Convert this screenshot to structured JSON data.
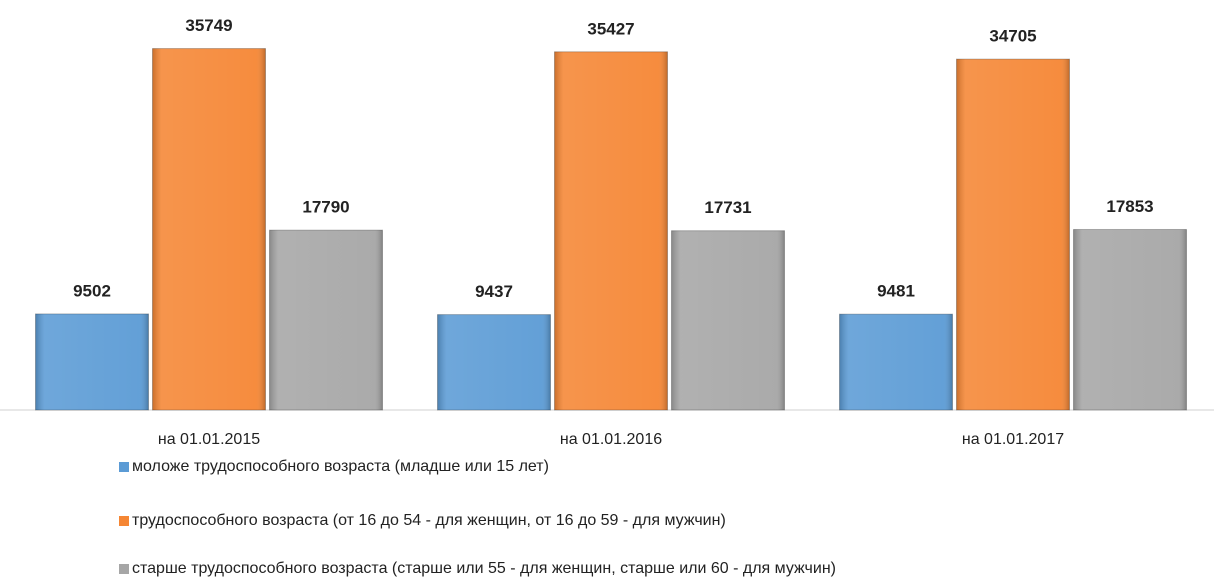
{
  "chart_data": {
    "type": "bar",
    "categories": [
      "на 01.01.2015",
      "на 01.01.2016",
      "на 01.01.2017"
    ],
    "series": [
      {
        "name": "моложе трудоспособного возраста (младше или 15 лет)",
        "color": "#5b9bd5",
        "values": [
          9502,
          9437,
          9481
        ]
      },
      {
        "name": "трудоспособного возраста (от 16 до 54 - для женщин, от 16 до 59 - для мужчин)",
        "color": "#f58634",
        "values": [
          35749,
          35427,
          34705
        ]
      },
      {
        "name": "старше трудоспособного возраста (старше или 55 - для женщин, старше или 60 - для мужчин)",
        "color": "#a6a6a6",
        "values": [
          17790,
          17731,
          17853
        ]
      }
    ],
    "ylim": [
      0,
      36000
    ],
    "legend": "bottom"
  }
}
